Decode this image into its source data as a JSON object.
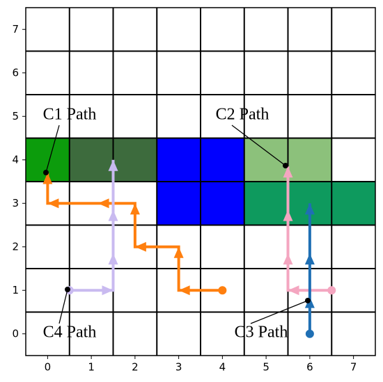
{
  "chart_data": {
    "type": "path",
    "xlim": [
      -0.5,
      7.5
    ],
    "ylim": [
      -0.5,
      7.5
    ],
    "xticks": [
      0,
      1,
      2,
      3,
      4,
      5,
      6,
      7
    ],
    "yticks": [
      0,
      1,
      2,
      3,
      4,
      5,
      6,
      7
    ],
    "cell_edges": [
      0.5,
      1.5,
      2.5,
      3.5,
      4.5,
      5.5,
      6.5
    ],
    "cells": [
      {
        "x": 0,
        "y": 4,
        "color": "#0c9c0c"
      },
      {
        "x": 1,
        "y": 4,
        "color": "#3d6b3d"
      },
      {
        "x": 2,
        "y": 4,
        "color": "#3d6b3d"
      },
      {
        "x": 3,
        "y": 4,
        "color": "#0000ff"
      },
      {
        "x": 4,
        "y": 4,
        "color": "#0000ff"
      },
      {
        "x": 3,
        "y": 3,
        "color": "#0000ff"
      },
      {
        "x": 4,
        "y": 3,
        "color": "#0000ff"
      },
      {
        "x": 5,
        "y": 4,
        "color": "#8cc17b"
      },
      {
        "x": 6,
        "y": 4,
        "color": "#8cc17b"
      },
      {
        "x": 5,
        "y": 3,
        "color": "#0e9a5e"
      },
      {
        "x": 6,
        "y": 3,
        "color": "#0e9a5e"
      },
      {
        "x": 7,
        "y": 3,
        "color": "#0e9a5e"
      }
    ],
    "series": [
      {
        "name": "C1 Path",
        "color": "#ff7f0e",
        "x": [
          4,
          3,
          3,
          2,
          2,
          0,
          0
        ],
        "y": [
          1,
          1,
          2,
          2,
          3,
          3,
          3.7
        ]
      },
      {
        "name": "C2 Path",
        "color": "#f4a6c0",
        "x": [
          6.5,
          5.5,
          5.5
        ],
        "y": [
          1,
          1,
          3.85
        ]
      },
      {
        "name": "C3 Path",
        "color": "#1f6fb4",
        "x": [
          6,
          6
        ],
        "y": [
          0,
          3
        ]
      },
      {
        "name": "C4 Path",
        "color": "#c9baf0",
        "x": [
          0.5,
          1.5,
          1.5
        ],
        "y": [
          1,
          1,
          4
        ]
      }
    ]
  }
}
